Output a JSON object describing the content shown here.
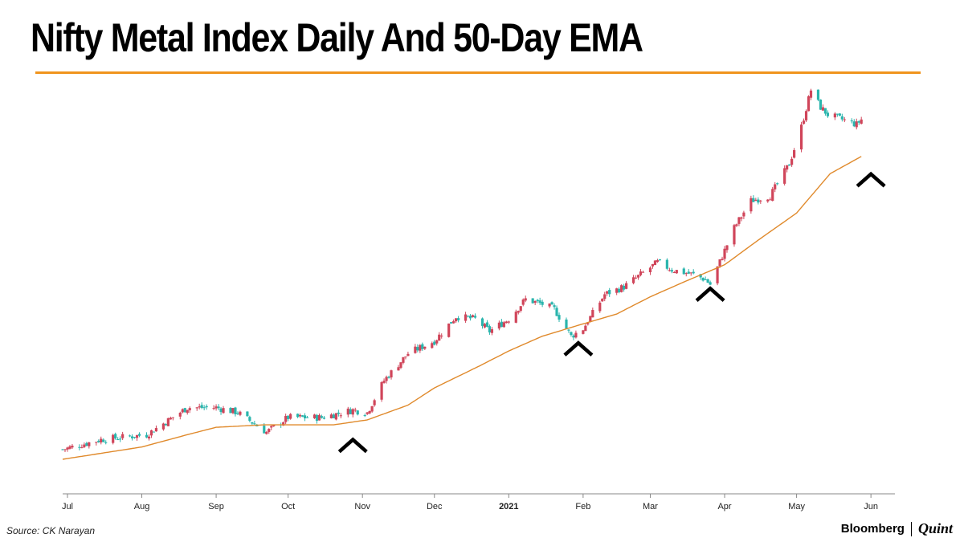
{
  "header": {
    "title": "Nifty Metal Index Daily And 50-Day EMA"
  },
  "footer": {
    "source": "Source: CK Narayan",
    "brand": "Bloomberg",
    "brand_partner": "Quint"
  },
  "colors": {
    "up": "#d0455a",
    "down": "#2ab5ad",
    "ema": "#e08a2c",
    "rule": "#f0941d",
    "marker": "#000000"
  },
  "chart_data": {
    "type": "candlestick",
    "title": "Nifty Metal Index Daily And 50-Day EMA",
    "x_tick_labels": [
      "Jul",
      "Aug",
      "Sep",
      "Oct",
      "Nov",
      "Dec",
      "2021",
      "Feb",
      "Mar",
      "Apr",
      "May",
      "Jun"
    ],
    "x_tick_dates": [
      "2020-07-01",
      "2020-08-01",
      "2020-09-01",
      "2020-10-01",
      "2020-11-01",
      "2020-12-01",
      "2021-01-01",
      "2021-02-01",
      "2021-03-01",
      "2021-04-01",
      "2021-05-01",
      "2021-06-01"
    ],
    "x_range": [
      "2020-06-29",
      "2021-06-11"
    ],
    "y_axis_labels_shown": false,
    "grid": false,
    "price_anchors": {
      "dates": [
        "2020-06-29",
        "2020-07-15",
        "2020-08-03",
        "2020-08-20",
        "2020-09-01",
        "2020-09-10",
        "2020-09-22",
        "2020-10-01",
        "2020-10-15",
        "2020-10-28",
        "2020-11-03",
        "2020-11-10",
        "2020-11-20",
        "2020-12-01",
        "2020-12-10",
        "2020-12-18",
        "2020-12-24",
        "2021-01-01",
        "2021-01-08",
        "2021-01-15",
        "2021-01-20",
        "2021-01-27",
        "2021-02-01",
        "2021-02-10",
        "2021-02-18",
        "2021-02-25",
        "2021-03-04",
        "2021-03-10",
        "2021-03-19",
        "2021-03-24",
        "2021-03-26",
        "2021-04-05",
        "2021-04-12",
        "2021-04-20",
        "2021-04-28",
        "2021-05-03",
        "2021-05-07",
        "2021-05-11",
        "2021-05-14",
        "2021-05-20",
        "2021-05-26",
        "2021-05-28"
      ],
      "close": [
        0.04,
        0.08,
        0.1,
        0.21,
        0.21,
        0.19,
        0.11,
        0.17,
        0.17,
        0.2,
        0.19,
        0.32,
        0.43,
        0.48,
        0.58,
        0.57,
        0.52,
        0.57,
        0.65,
        0.63,
        0.61,
        0.5,
        0.53,
        0.67,
        0.7,
        0.75,
        0.8,
        0.77,
        0.75,
        0.73,
        0.71,
        0.94,
        1.05,
        1.07,
        1.2,
        1.35,
        1.5,
        1.43,
        1.4,
        1.38,
        1.36,
        1.38
      ]
    },
    "ema_anchors": {
      "dates": [
        "2020-06-29",
        "2020-08-01",
        "2020-08-20",
        "2020-09-01",
        "2020-09-21",
        "2020-10-01",
        "2020-10-20",
        "2020-11-03",
        "2020-11-20",
        "2020-12-01",
        "2020-12-20",
        "2021-01-01",
        "2021-01-15",
        "2021-02-01",
        "2021-02-15",
        "2021-03-01",
        "2021-03-15",
        "2021-04-01",
        "2021-04-15",
        "2021-05-01",
        "2021-05-15",
        "2021-05-28"
      ],
      "value": [
        0.0,
        0.05,
        0.1,
        0.13,
        0.14,
        0.14,
        0.14,
        0.16,
        0.22,
        0.29,
        0.38,
        0.44,
        0.5,
        0.55,
        0.59,
        0.66,
        0.72,
        0.79,
        0.89,
        1.0,
        1.16,
        1.23
      ]
    },
    "markers": [
      {
        "type": "caret-up",
        "date": "2020-10-28"
      },
      {
        "type": "caret-up",
        "date": "2021-01-30"
      },
      {
        "type": "caret-up",
        "date": "2021-03-26"
      },
      {
        "type": "caret-up",
        "date": "2021-06-01"
      }
    ]
  }
}
